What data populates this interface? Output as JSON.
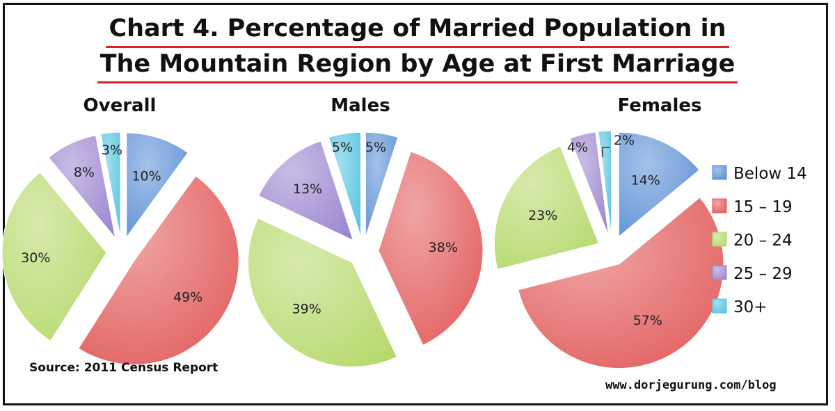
{
  "title_line1": "Chart 4. Percentage of Married Population in",
  "title_line2": "The Mountain Region by Age at First Marriage",
  "source": "Source: 2011 Census Report",
  "website": "www.dorjegurung.com/blog",
  "chart_data": {
    "type": "pie",
    "categories": [
      "Below 14",
      "15 – 19",
      "20 – 24",
      "25 – 29",
      "30+"
    ],
    "colors": [
      "#5b8fd6",
      "#e25b5b",
      "#b5d96a",
      "#9b85cf",
      "#55c4e0"
    ],
    "legend_position": "right",
    "pies": [
      {
        "name": "Overall",
        "values": [
          10,
          49,
          30,
          8,
          3
        ],
        "labels": [
          "10%",
          "49%",
          "30%",
          "8%",
          "3%"
        ]
      },
      {
        "name": "Males",
        "values": [
          5,
          38,
          39,
          13,
          5
        ],
        "labels": [
          "5%",
          "38%",
          "39%",
          "13%",
          "5%"
        ]
      },
      {
        "name": "Females",
        "values": [
          14,
          57,
          23,
          4,
          2
        ],
        "labels": [
          "14%",
          "57%",
          "23%",
          "4%",
          "2%"
        ]
      }
    ]
  }
}
